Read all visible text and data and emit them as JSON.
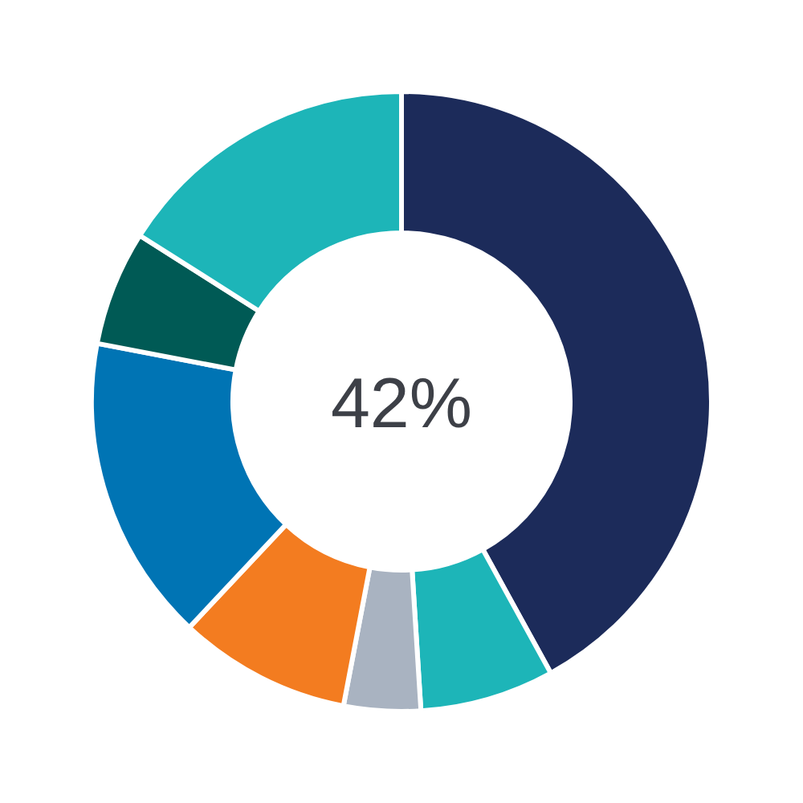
{
  "chart_data": {
    "type": "donut",
    "categories": [
      null,
      null,
      null,
      null,
      null,
      null,
      null
    ],
    "values": [
      42,
      7,
      4,
      9,
      16,
      6,
      16
    ],
    "colors": [
      "#1c2b5a",
      "#1db5b8",
      "#a9b3c1",
      "#f37c20",
      "#0074b4",
      "#005a55",
      "#1db5b8"
    ],
    "annotations": [
      "42%"
    ]
  }
}
